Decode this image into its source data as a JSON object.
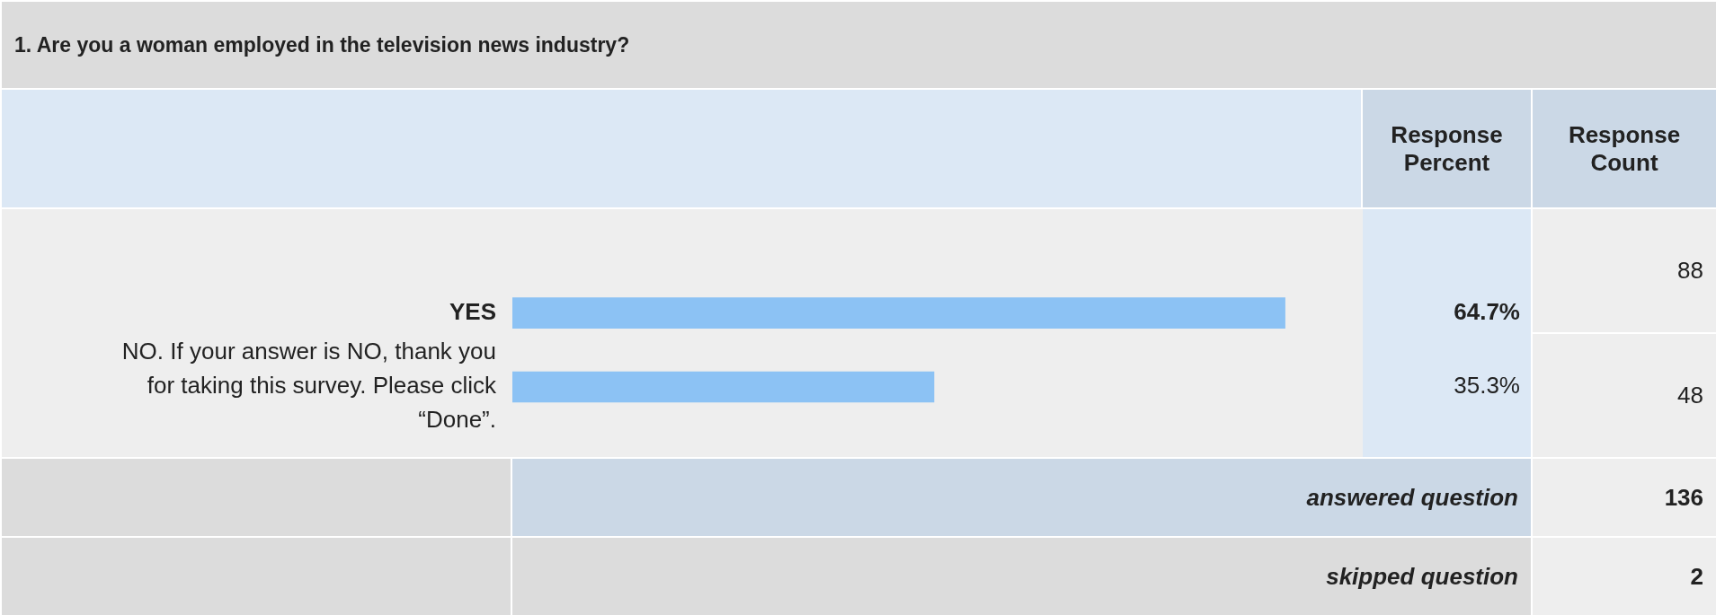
{
  "chart_data": {
    "type": "bar",
    "orientation": "horizontal",
    "title": "1. Are you a woman employed in the television news industry?",
    "categories": [
      "YES",
      "NO. If your answer is NO, thank you for taking this survey. Please click “Done”."
    ],
    "values": [
      64.7,
      35.3
    ],
    "color": "#8cc2f4",
    "value_labels": [
      "64.7%",
      "35.3%"
    ],
    "tick_labels": "y",
    "grid": false,
    "legend": false,
    "annotations": [
      "Response Percent",
      "Response Count",
      "88",
      "48",
      "answered question",
      "136",
      "skipped question",
      "2"
    ]
  }
}
